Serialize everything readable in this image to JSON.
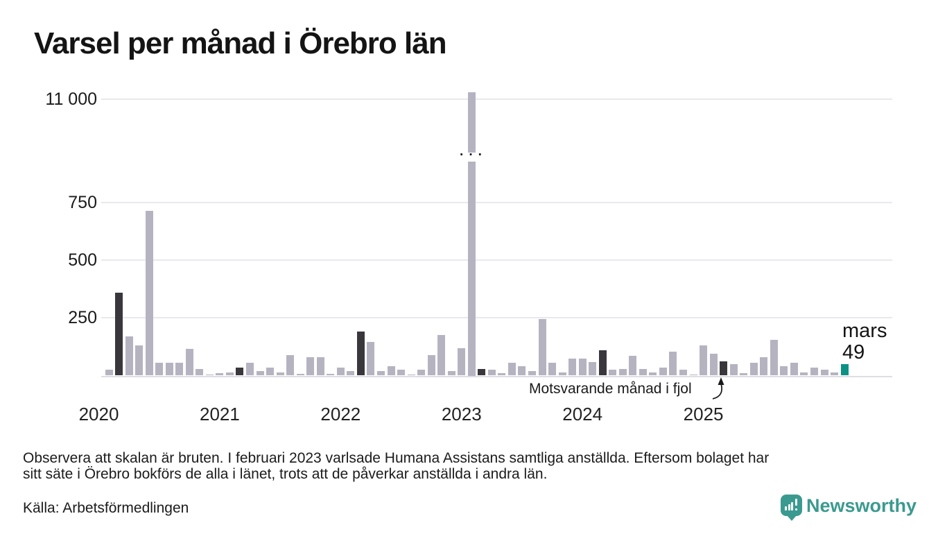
{
  "title": "Varsel per månad i Örebro län",
  "annotations": {
    "latest_month_label": "mars",
    "latest_value_label": "49",
    "fjol_label": "Motsvarande månad i fjol",
    "scale_break_dots": "···"
  },
  "footnote": {
    "line1": "Observera att skalan är bruten. I februari 2023 varlsade Humana Assistans samtliga anställda. Eftersom bolaget har",
    "line2": "sitt säte i Örebro bokförs de alla i länet, trots att de påverkar anställda i andra län."
  },
  "source": "Källa: Arbetsförmedlingen",
  "brand": {
    "name": "Newsworthy"
  },
  "colors": {
    "bar_default": "#b6b3c1",
    "bar_dark": "#3a373c",
    "bar_current": "#0b9285",
    "grid": "#e9e8ee",
    "axis": "#dedde4",
    "text": "#1a1a1a",
    "brand_teal": "#3b9a8f"
  },
  "chart_data": {
    "type": "bar",
    "title": "Varsel per månad i Örebro län",
    "xlabel": "",
    "ylabel": "",
    "grid": "horizontal",
    "legend": "none",
    "broken_scale": true,
    "visible_axis_max": 800,
    "y_ticks": [
      {
        "label": "11 000",
        "value": 11000
      },
      {
        "label": "750",
        "value": 750
      },
      {
        "label": "500",
        "value": 500
      },
      {
        "label": "250",
        "value": 250
      }
    ],
    "year_labels": [
      "2020",
      "2021",
      "2022",
      "2023",
      "2024",
      "2025"
    ],
    "dark_month_indices": [
      2,
      14,
      26,
      38,
      50,
      62
    ],
    "dark_series_note": "mars varje år (mörka staplar); sista mörka stapeln = Motsvarande månad i fjol",
    "current_month_index": 74,
    "current_month_value": 49,
    "broken_bar_index": 37,
    "broken_bar_note": "Humana Assistans februari 2023, stapel bruten vid 11 000",
    "x": [
      "2020-01",
      "2020-02",
      "2020-03",
      "2020-04",
      "2020-05",
      "2020-06",
      "2020-07",
      "2020-08",
      "2020-09",
      "2020-10",
      "2020-11",
      "2020-12",
      "2021-01",
      "2021-02",
      "2021-03",
      "2021-04",
      "2021-05",
      "2021-06",
      "2021-07",
      "2021-08",
      "2021-09",
      "2021-10",
      "2021-11",
      "2021-12",
      "2022-01",
      "2022-02",
      "2022-03",
      "2022-04",
      "2022-05",
      "2022-06",
      "2022-07",
      "2022-08",
      "2022-09",
      "2022-10",
      "2022-11",
      "2022-12",
      "2023-01",
      "2023-02",
      "2023-03",
      "2023-04",
      "2023-05",
      "2023-06",
      "2023-07",
      "2023-08",
      "2023-09",
      "2023-10",
      "2023-11",
      "2023-12",
      "2024-01",
      "2024-02",
      "2024-03",
      "2024-04",
      "2024-05",
      "2024-06",
      "2024-07",
      "2024-08",
      "2024-09",
      "2024-10",
      "2024-11",
      "2024-12",
      "2025-01",
      "2025-02",
      "2025-03",
      "2025-04",
      "2025-05",
      "2025-06",
      "2025-07",
      "2025-08",
      "2025-09",
      "2025-10",
      "2025-11",
      "2025-12",
      "2026-01",
      "2026-02",
      "2026-03"
    ],
    "values": [
      0,
      25,
      360,
      170,
      130,
      715,
      55,
      55,
      55,
      115,
      30,
      5,
      10,
      15,
      35,
      55,
      20,
      35,
      15,
      90,
      8,
      80,
      80,
      8,
      35,
      20,
      190,
      145,
      20,
      40,
      25,
      5,
      25,
      90,
      175,
      20,
      120,
      11200,
      30,
      25,
      10,
      55,
      40,
      20,
      245,
      55,
      15,
      75,
      75,
      60,
      110,
      25,
      30,
      85,
      30,
      15,
      35,
      105,
      25,
      5,
      130,
      95,
      62,
      50,
      10,
      55,
      80,
      155,
      40,
      55,
      15,
      35,
      25,
      15,
      49
    ]
  }
}
